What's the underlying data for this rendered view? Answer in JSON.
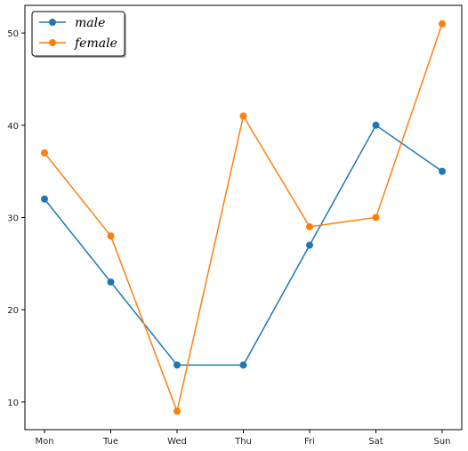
{
  "chart_data": {
    "type": "line",
    "categories": [
      "Mon",
      "Tue",
      "Wed",
      "Thu",
      "Fri",
      "Sat",
      "Sun"
    ],
    "series": [
      {
        "name": "male",
        "values": [
          32,
          23,
          14,
          14,
          27,
          40,
          35
        ],
        "color": "#1f77b4"
      },
      {
        "name": "female",
        "values": [
          37,
          28,
          9,
          41,
          29,
          30,
          51
        ],
        "color": "#ff7f0e"
      }
    ],
    "yticks": [
      10,
      20,
      30,
      40,
      50
    ],
    "ylim": [
      7,
      53
    ],
    "grid": false,
    "legend_position": "top-left",
    "marker": "circle"
  }
}
